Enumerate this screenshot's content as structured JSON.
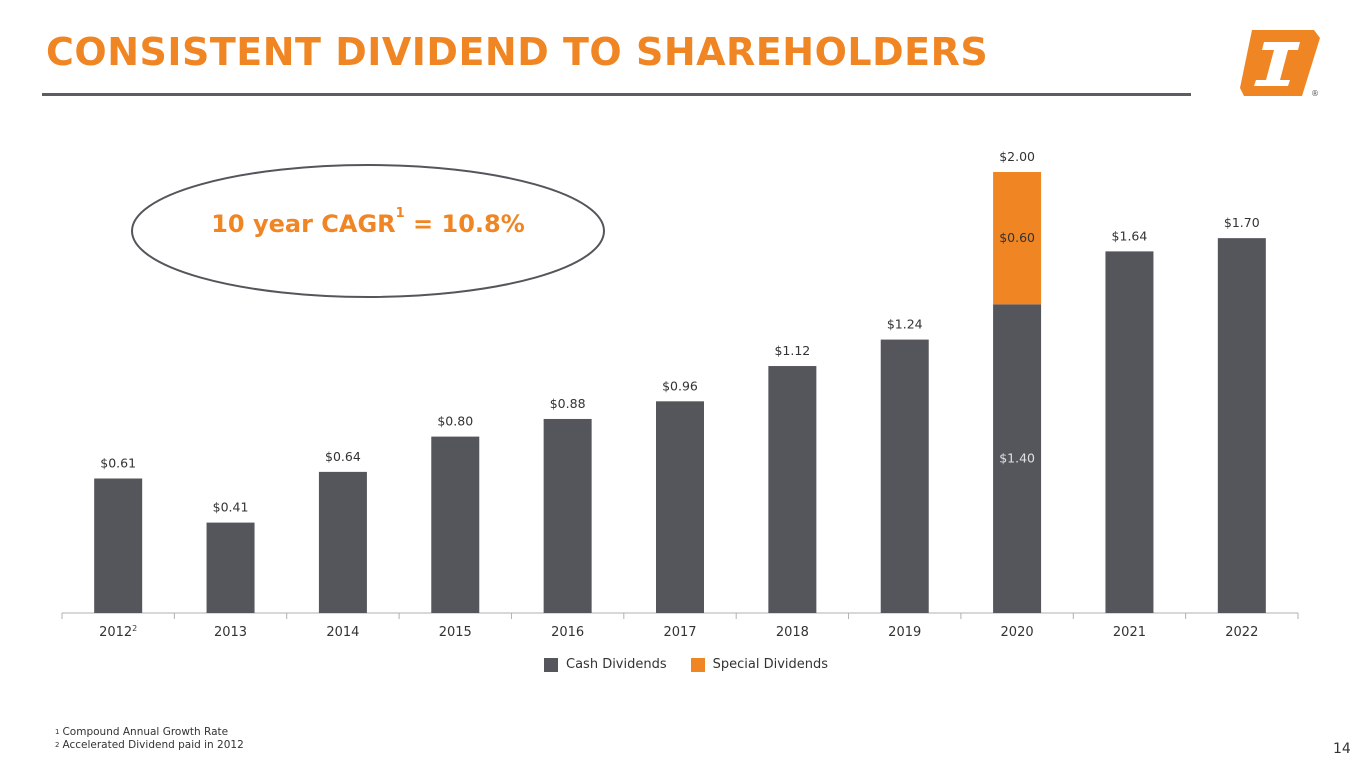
{
  "slide": {
    "title": "CONSISTENT DIVIDEND TO SHAREHOLDERS",
    "page_number": "14",
    "cagr": {
      "label": "10 year CAGR",
      "sup": "1",
      "value": " = 10.8%"
    },
    "footnotes": [
      {
        "mark": "1",
        "text": "Compound Annual Growth Rate"
      },
      {
        "mark": "2",
        "text": "Accelerated Dividend paid in 2012"
      }
    ]
  },
  "colors": {
    "accent": "#f08524",
    "bar_gray": "#54565c",
    "rule": "#5b5d63"
  },
  "chart_data": {
    "type": "bar",
    "stacked": true,
    "categories": [
      "2012",
      "2013",
      "2014",
      "2015",
      "2016",
      "2017",
      "2018",
      "2019",
      "2020",
      "2021",
      "2022"
    ],
    "category_sups": [
      "2",
      "",
      "",
      "",
      "",
      "",
      "",
      "",
      "",
      "",
      ""
    ],
    "series": [
      {
        "name": "Cash Dividends",
        "color": "#54565c",
        "values": [
          0.61,
          0.41,
          0.64,
          0.8,
          0.88,
          0.96,
          1.12,
          1.24,
          1.4,
          1.64,
          1.7
        ]
      },
      {
        "name": "Special Dividends",
        "color": "#f08524",
        "values": [
          0,
          0,
          0,
          0,
          0,
          0,
          0,
          0,
          0.6,
          0,
          0
        ]
      }
    ],
    "total_labels": [
      "$0.61",
      "$0.41",
      "$0.64",
      "$0.80",
      "$0.88",
      "$0.96",
      "$1.12",
      "$1.24",
      "$2.00",
      "$1.64",
      "$1.70"
    ],
    "segment_labels": [
      {
        "category": "2020",
        "series": "Cash Dividends",
        "text": "$1.40"
      },
      {
        "category": "2020",
        "series": "Special Dividends",
        "text": "$0.60"
      }
    ],
    "ylim": [
      0,
      2.0
    ],
    "title": "",
    "xlabel": "",
    "ylabel": "",
    "legend_position": "bottom"
  }
}
